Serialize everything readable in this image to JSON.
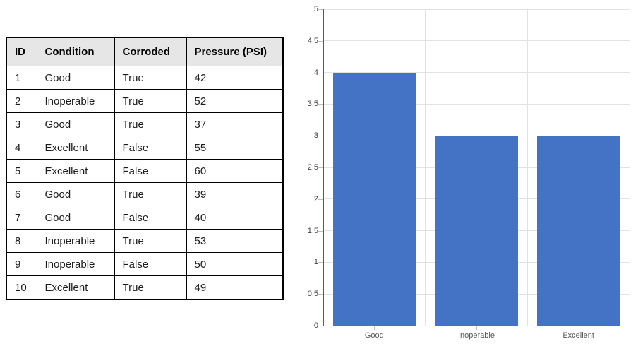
{
  "page": {
    "background": "#ffffff"
  },
  "table": {
    "headers": [
      "ID",
      "Condition",
      "Corroded",
      "Pressure (PSI)"
    ],
    "rows": [
      [
        "1",
        "Good",
        "True",
        "42"
      ],
      [
        "2",
        "Inoperable",
        "True",
        "52"
      ],
      [
        "3",
        "Good",
        "True",
        "37"
      ],
      [
        "4",
        "Excellent",
        "False",
        "55"
      ],
      [
        "5",
        "Excellent",
        "False",
        "60"
      ],
      [
        "6",
        "Good",
        "True",
        "39"
      ],
      [
        "7",
        "Good",
        "False",
        "40"
      ],
      [
        "8",
        "Inoperable",
        "True",
        "53"
      ],
      [
        "9",
        "Inoperable",
        "False",
        "50"
      ],
      [
        "10",
        "Excellent",
        "True",
        "49"
      ]
    ],
    "header_bg": "#e7e6e6",
    "border_color": "#000000"
  },
  "chart_data": {
    "type": "bar",
    "categories": [
      "Good",
      "Inoperable",
      "Excellent"
    ],
    "values": [
      4,
      3,
      3
    ],
    "title": "",
    "xlabel": "",
    "ylabel": "",
    "ylim": [
      0,
      5
    ],
    "ytick_step": 0.5,
    "ytick_labels": [
      "0",
      "0.5",
      "1",
      "1.5",
      "2",
      "2.5",
      "3",
      "3.5",
      "4",
      "4.5",
      "5"
    ],
    "grid": true,
    "legend_position": "none",
    "bar_color": "#4472c4",
    "gridline_color": "#e2e2e2",
    "y_axis_color": "#595959",
    "x_axis_color": "#808080",
    "tick_mark_color": "#bfbfbf",
    "y_tick_label_color": "#404040",
    "category_label_color": "#595959"
  }
}
